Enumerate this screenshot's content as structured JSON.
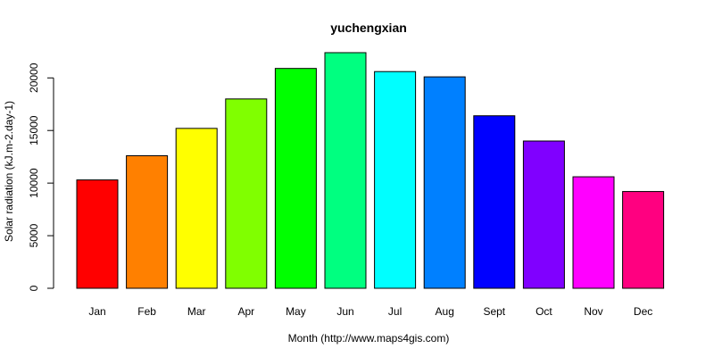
{
  "chart_data": {
    "type": "bar",
    "title": "yuchengxian",
    "xlabel": "Month (http://www.maps4gis.com)",
    "ylabel": "Solar radiation (kJ.m-2.day-1)",
    "categories": [
      "Jan",
      "Feb",
      "Mar",
      "Apr",
      "May",
      "Jun",
      "Jul",
      "Aug",
      "Sept",
      "Oct",
      "Nov",
      "Dec"
    ],
    "values": [
      10300,
      12600,
      15200,
      18000,
      20900,
      22400,
      20600,
      20100,
      16400,
      14000,
      10600,
      9200
    ],
    "colors": [
      "#FF0000",
      "#FF8000",
      "#FFFF00",
      "#80FF00",
      "#00FF00",
      "#00FF80",
      "#00FFFF",
      "#0080FF",
      "#0000FF",
      "#8000FF",
      "#FF00FF",
      "#FF0080"
    ],
    "ylim": [
      0,
      22400
    ],
    "yticks": [
      0,
      5000,
      10000,
      15000,
      20000
    ],
    "grid": false,
    "legend": "none"
  }
}
